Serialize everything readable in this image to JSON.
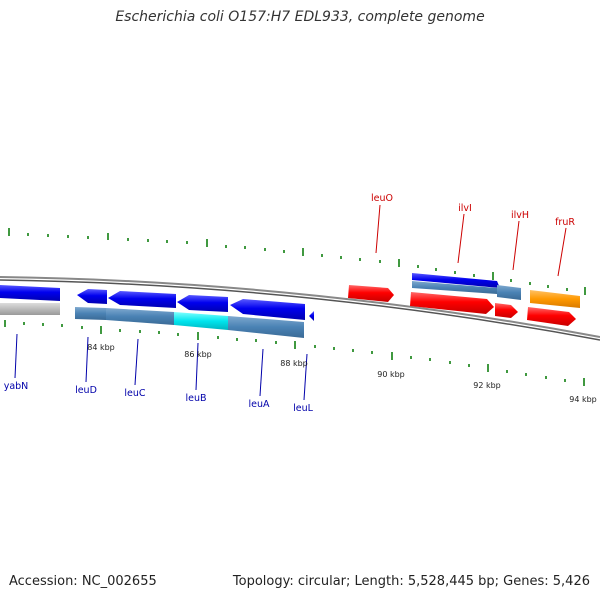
{
  "title": "Escherichia coli O157:H7 EDL933, complete genome",
  "footer": {
    "accession": "Accession: NC_002655",
    "summary": "Topology: circular; Length: 5,528,445 bp; Genes: 5,426"
  },
  "colors": {
    "forward_gene": "#ff0000",
    "reverse_gene": "#0000ee",
    "operon_bar": "#4a82b4",
    "highlight_bar": "#00e5ee",
    "orange_gene": "#ff9900",
    "grey_gene": "#bbbbbb",
    "tick": "#007700",
    "backbone": "#888888"
  },
  "ticks": [
    {
      "label": "84 kbp"
    },
    {
      "label": "86 kbp"
    },
    {
      "label": "88 kbp"
    },
    {
      "label": "90 kbp"
    },
    {
      "label": "92 kbp"
    },
    {
      "label": "94 kbp"
    }
  ],
  "genes": [
    {
      "name": "yabN",
      "strand": "reverse"
    },
    {
      "name": "leuD",
      "strand": "reverse"
    },
    {
      "name": "leuC",
      "strand": "reverse"
    },
    {
      "name": "leuB",
      "strand": "reverse"
    },
    {
      "name": "leuA",
      "strand": "reverse"
    },
    {
      "name": "leuL",
      "strand": "reverse"
    },
    {
      "name": "leuO",
      "strand": "forward"
    },
    {
      "name": "ilvI",
      "strand": "forward"
    },
    {
      "name": "ilvH",
      "strand": "forward"
    },
    {
      "name": "fruR",
      "strand": "forward"
    }
  ]
}
